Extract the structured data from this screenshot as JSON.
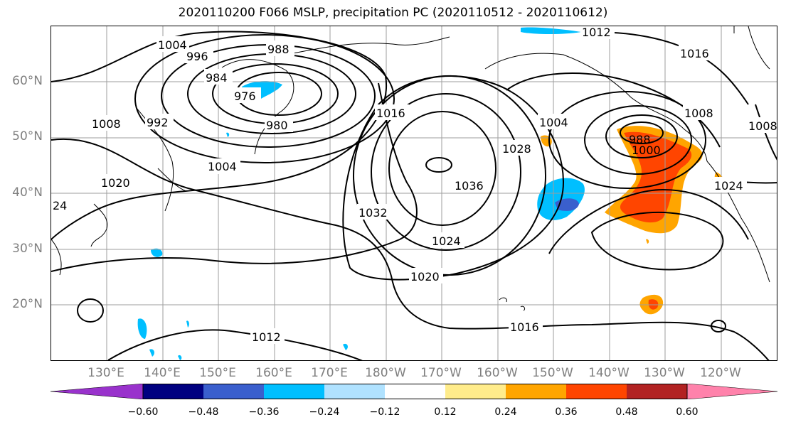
{
  "title": "2020110200 F066 MSLP, precipitation PC (2020110512 - 2020110612)",
  "lat_labels": [
    "60°N",
    "50°N",
    "40°N",
    "30°N",
    "20°N"
  ],
  "lon_labels": [
    "130°E",
    "140°E",
    "150°E",
    "160°E",
    "170°E",
    "180°W",
    "170°W",
    "160°W",
    "150°W",
    "140°W",
    "130°W",
    "120°W"
  ],
  "contour_labels": [
    "1004",
    "996",
    "988",
    "984",
    "976",
    "980",
    "1008",
    "992",
    "1004",
    "1020",
    "1016",
    "1032",
    "1036",
    "1028",
    "1024",
    "1020",
    "1012",
    "1016",
    "1004",
    "988",
    "1000",
    "1008",
    "1008",
    "1024",
    "1012",
    "1016",
    "24"
  ],
  "colorbar": {
    "colors": [
      "#9932cc",
      "#000080",
      "#3a5fcd",
      "#00bfff",
      "#b0e2ff",
      "#ffffff",
      "#ffec8b",
      "#ffa500",
      "#ff4500",
      "#b22222",
      "#ff82ab"
    ],
    "ticks": [
      "−0.60",
      "−0.48",
      "−0.36",
      "−0.24",
      "−0.12",
      "0.12",
      "0.24",
      "0.36",
      "0.48",
      "0.60"
    ]
  }
}
